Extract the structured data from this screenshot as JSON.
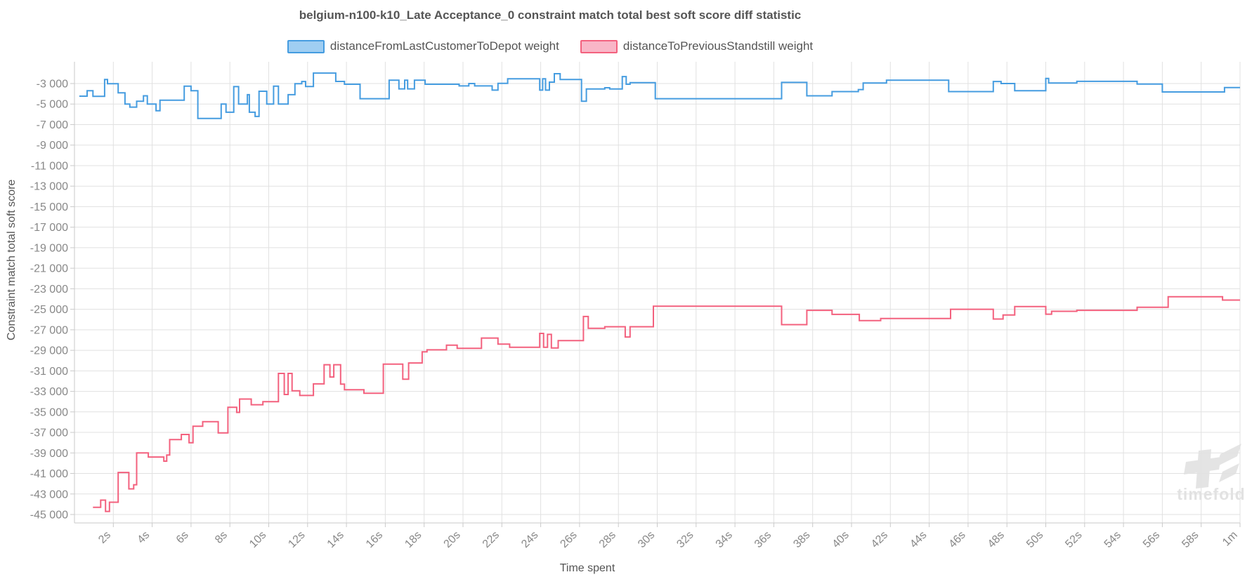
{
  "chart_title": "belgium-n100-k10_Late Acceptance_0 constraint match total best soft score diff statistic",
  "legend": {
    "items": [
      {
        "label": "distanceFromLastCustomerToDepot weight",
        "fill": "#9fcef2",
        "border": "#459ce0"
      },
      {
        "label": "distanceToPreviousStandstill weight",
        "fill": "#f9b6c7",
        "border": "#f3617e"
      }
    ]
  },
  "axes": {
    "x_title": "Time spent",
    "y_title": "Constraint match total soft score"
  },
  "watermark": {
    "text": "timefold"
  },
  "colors": {
    "grid": "#e1e1e1",
    "axis": "#cacaca",
    "tick_text": "#888888",
    "title_text": "#555555",
    "watermark": "#e4e4e4"
  },
  "chart_data": {
    "type": "line",
    "step": true,
    "title": "belgium-n100-k10_Late Acceptance_0 constraint match total best soft score diff statistic",
    "xlabel": "Time spent",
    "ylabel": "Constraint match total soft score",
    "grid": true,
    "legend_position": "top",
    "x_range_seconds": [
      0,
      60
    ],
    "y_range": [
      -45820,
      -880
    ],
    "x_ticks": [
      {
        "value": 2,
        "label": "2s"
      },
      {
        "value": 4,
        "label": "4s"
      },
      {
        "value": 6,
        "label": "6s"
      },
      {
        "value": 8,
        "label": "8s"
      },
      {
        "value": 10,
        "label": "10s"
      },
      {
        "value": 12,
        "label": "12s"
      },
      {
        "value": 14,
        "label": "14s"
      },
      {
        "value": 16,
        "label": "16s"
      },
      {
        "value": 18,
        "label": "18s"
      },
      {
        "value": 20,
        "label": "20s"
      },
      {
        "value": 22,
        "label": "22s"
      },
      {
        "value": 24,
        "label": "24s"
      },
      {
        "value": 26,
        "label": "26s"
      },
      {
        "value": 28,
        "label": "28s"
      },
      {
        "value": 30,
        "label": "30s"
      },
      {
        "value": 32,
        "label": "32s"
      },
      {
        "value": 34,
        "label": "34s"
      },
      {
        "value": 36,
        "label": "36s"
      },
      {
        "value": 38,
        "label": "38s"
      },
      {
        "value": 40,
        "label": "40s"
      },
      {
        "value": 42,
        "label": "42s"
      },
      {
        "value": 44,
        "label": "44s"
      },
      {
        "value": 46,
        "label": "46s"
      },
      {
        "value": 48,
        "label": "48s"
      },
      {
        "value": 50,
        "label": "50s"
      },
      {
        "value": 52,
        "label": "52s"
      },
      {
        "value": 54,
        "label": "54s"
      },
      {
        "value": 56,
        "label": "56s"
      },
      {
        "value": 58,
        "label": "58s"
      },
      {
        "value": 60,
        "label": "1m"
      }
    ],
    "y_ticks": [
      {
        "value": -3000,
        "label": "-3 000"
      },
      {
        "value": -5000,
        "label": "-5 000"
      },
      {
        "value": -7000,
        "label": "-7 000"
      },
      {
        "value": -9000,
        "label": "-9 000"
      },
      {
        "value": -11000,
        "label": "-11 000"
      },
      {
        "value": -13000,
        "label": "-13 000"
      },
      {
        "value": -15000,
        "label": "-15 000"
      },
      {
        "value": -17000,
        "label": "-17 000"
      },
      {
        "value": -19000,
        "label": "-19 000"
      },
      {
        "value": -21000,
        "label": "-21 000"
      },
      {
        "value": -23000,
        "label": "-23 000"
      },
      {
        "value": -25000,
        "label": "-25 000"
      },
      {
        "value": -27000,
        "label": "-27 000"
      },
      {
        "value": -29000,
        "label": "-29 000"
      },
      {
        "value": -31000,
        "label": "-31 000"
      },
      {
        "value": -33000,
        "label": "-33 000"
      },
      {
        "value": -35000,
        "label": "-35 000"
      },
      {
        "value": -37000,
        "label": "-37 000"
      },
      {
        "value": -39000,
        "label": "-39 000"
      },
      {
        "value": -41000,
        "label": "-41 000"
      },
      {
        "value": -43000,
        "label": "-43 000"
      },
      {
        "value": -45000,
        "label": "-45 000"
      }
    ],
    "series": [
      {
        "name": "distanceFromLastCustomerToDepot weight",
        "color": "#459ce0",
        "points": [
          [
            0.25,
            -4230
          ],
          [
            0.65,
            -3700
          ],
          [
            0.95,
            -4250
          ],
          [
            1.55,
            -2610
          ],
          [
            1.7,
            -3020
          ],
          [
            2.25,
            -3900
          ],
          [
            2.6,
            -5000
          ],
          [
            2.85,
            -5300
          ],
          [
            3.2,
            -4730
          ],
          [
            3.55,
            -4200
          ],
          [
            3.75,
            -5000
          ],
          [
            4.2,
            -5650
          ],
          [
            4.4,
            -4620
          ],
          [
            5.65,
            -3250
          ],
          [
            6.0,
            -3700
          ],
          [
            6.35,
            -6400
          ],
          [
            7.55,
            -5000
          ],
          [
            7.8,
            -5800
          ],
          [
            8.2,
            -3300
          ],
          [
            8.45,
            -5000
          ],
          [
            8.9,
            -4090
          ],
          [
            9.0,
            -5800
          ],
          [
            9.3,
            -6210
          ],
          [
            9.5,
            -3750
          ],
          [
            9.9,
            -5000
          ],
          [
            10.25,
            -3250
          ],
          [
            10.5,
            -5000
          ],
          [
            11.0,
            -4090
          ],
          [
            11.35,
            -3020
          ],
          [
            11.7,
            -2800
          ],
          [
            11.9,
            -3295
          ],
          [
            12.3,
            -1980
          ],
          [
            13.45,
            -2795
          ],
          [
            13.9,
            -3070
          ],
          [
            14.7,
            -4480
          ],
          [
            16.2,
            -2680
          ],
          [
            16.7,
            -3520
          ],
          [
            17.0,
            -2680
          ],
          [
            17.15,
            -3520
          ],
          [
            17.5,
            -2680
          ],
          [
            18.05,
            -3070
          ],
          [
            19.8,
            -3230
          ],
          [
            20.3,
            -3000
          ],
          [
            20.6,
            -3230
          ],
          [
            21.5,
            -3640
          ],
          [
            21.8,
            -2980
          ],
          [
            22.3,
            -2545
          ],
          [
            23.95,
            -3640
          ],
          [
            24.1,
            -2545
          ],
          [
            24.25,
            -3640
          ],
          [
            24.45,
            -2860
          ],
          [
            24.7,
            -2040
          ],
          [
            25.0,
            -2610
          ],
          [
            26.1,
            -4730
          ],
          [
            26.35,
            -3525
          ],
          [
            27.3,
            -3410
          ],
          [
            27.55,
            -3525
          ],
          [
            28.2,
            -2320
          ],
          [
            28.4,
            -3070
          ],
          [
            28.6,
            -2915
          ],
          [
            29.9,
            -4480
          ],
          [
            36.4,
            -2890
          ],
          [
            37.7,
            -4200
          ],
          [
            39.0,
            -3790
          ],
          [
            40.35,
            -3590
          ],
          [
            40.6,
            -2950
          ],
          [
            41.8,
            -2680
          ],
          [
            45.0,
            -3790
          ],
          [
            47.3,
            -2800
          ],
          [
            47.7,
            -3000
          ],
          [
            48.4,
            -3700
          ],
          [
            50.0,
            -2500
          ],
          [
            50.15,
            -2950
          ],
          [
            51.6,
            -2790
          ],
          [
            54.7,
            -3050
          ],
          [
            56.0,
            -3820
          ],
          [
            59.2,
            -3400
          ]
        ]
      },
      {
        "name": "distanceToPreviousStandstill weight",
        "color": "#f3617e",
        "points": [
          [
            0.95,
            -44300
          ],
          [
            1.35,
            -43600
          ],
          [
            1.6,
            -44700
          ],
          [
            1.8,
            -43800
          ],
          [
            2.25,
            -40900
          ],
          [
            2.8,
            -42500
          ],
          [
            3.05,
            -42100
          ],
          [
            3.2,
            -39000
          ],
          [
            3.8,
            -39400
          ],
          [
            4.6,
            -39800
          ],
          [
            4.75,
            -39200
          ],
          [
            4.9,
            -37700
          ],
          [
            5.5,
            -37200
          ],
          [
            5.9,
            -38000
          ],
          [
            6.1,
            -36400
          ],
          [
            6.6,
            -35950
          ],
          [
            7.4,
            -37050
          ],
          [
            7.9,
            -34550
          ],
          [
            8.35,
            -35050
          ],
          [
            8.5,
            -33750
          ],
          [
            9.1,
            -34300
          ],
          [
            9.7,
            -34000
          ],
          [
            10.5,
            -31250
          ],
          [
            10.8,
            -33300
          ],
          [
            11.0,
            -31250
          ],
          [
            11.2,
            -32950
          ],
          [
            11.6,
            -33400
          ],
          [
            12.3,
            -32270
          ],
          [
            12.85,
            -30400
          ],
          [
            13.15,
            -31600
          ],
          [
            13.35,
            -30400
          ],
          [
            13.7,
            -32300
          ],
          [
            13.9,
            -32840
          ],
          [
            14.9,
            -33180
          ],
          [
            15.9,
            -30340
          ],
          [
            16.9,
            -31820
          ],
          [
            17.2,
            -30230
          ],
          [
            17.9,
            -29150
          ],
          [
            18.15,
            -28950
          ],
          [
            19.15,
            -28500
          ],
          [
            19.7,
            -28800
          ],
          [
            20.95,
            -27800
          ],
          [
            21.8,
            -28400
          ],
          [
            22.4,
            -28700
          ],
          [
            23.95,
            -27350
          ],
          [
            24.15,
            -28700
          ],
          [
            24.35,
            -27450
          ],
          [
            24.55,
            -28770
          ],
          [
            24.9,
            -28050
          ],
          [
            26.2,
            -25700
          ],
          [
            26.45,
            -26850
          ],
          [
            27.3,
            -26700
          ],
          [
            28.35,
            -27700
          ],
          [
            28.6,
            -26700
          ],
          [
            29.8,
            -24700
          ],
          [
            36.4,
            -26500
          ],
          [
            37.7,
            -25100
          ],
          [
            39.0,
            -25500
          ],
          [
            40.4,
            -26100
          ],
          [
            41.5,
            -25900
          ],
          [
            45.1,
            -25000
          ],
          [
            47.3,
            -25950
          ],
          [
            47.8,
            -25550
          ],
          [
            48.4,
            -24730
          ],
          [
            50.0,
            -25480
          ],
          [
            50.3,
            -25200
          ],
          [
            51.6,
            -25100
          ],
          [
            54.7,
            -24800
          ],
          [
            56.3,
            -23780
          ],
          [
            59.1,
            -24100
          ]
        ]
      }
    ]
  }
}
